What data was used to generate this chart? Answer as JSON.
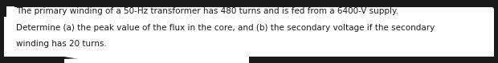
{
  "text_lines": [
    "The primary winding of a 50-Hz transformer has 480 turns and is fed from a 6400-V supply.",
    "Determine (a) the peak value of the flux in the core, and (b) the secondary voltage if the secondary",
    "winding has 20 turns."
  ],
  "background_color": "#1a1a1a",
  "box_facecolor": "#ffffff",
  "box_edgecolor": "#ffffff",
  "text_color": "#1a1a1a",
  "font_size": 7.5,
  "left_bar_color": "#1a1a1a",
  "fig_width": 6.2,
  "fig_height": 0.79,
  "dpi": 100
}
